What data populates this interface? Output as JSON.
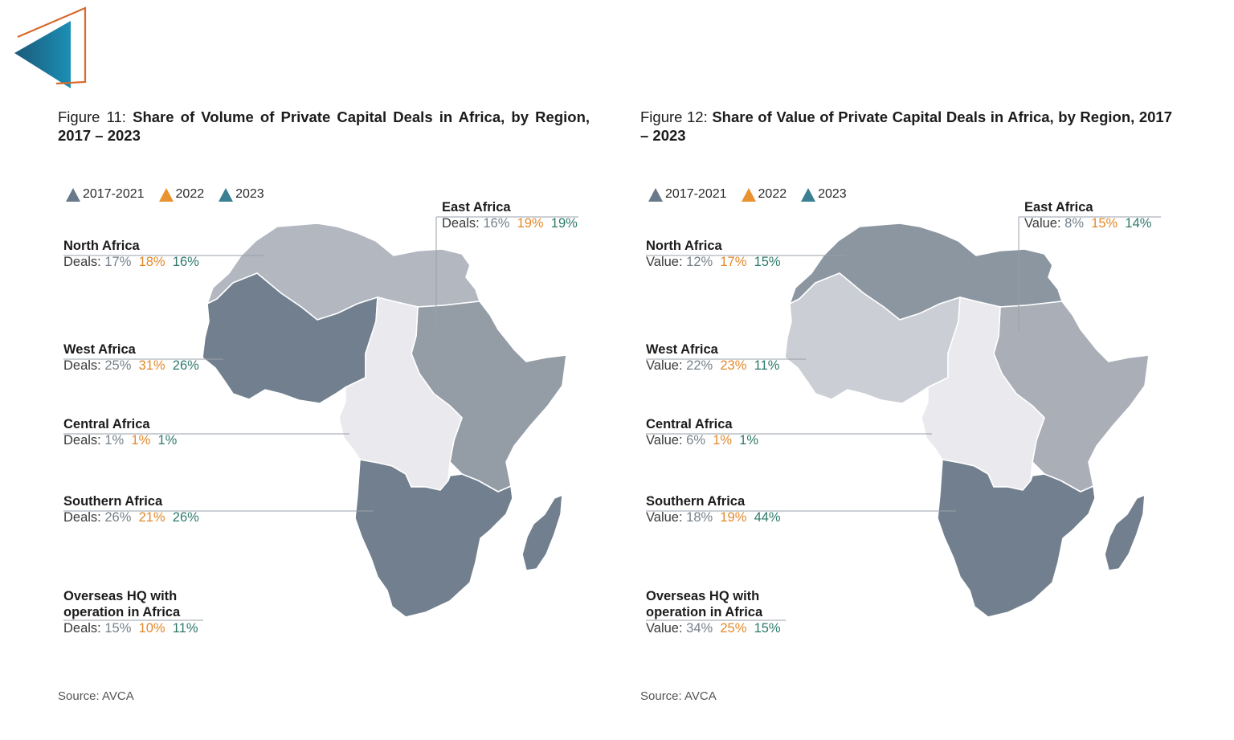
{
  "logo": {
    "name": "brand-logo"
  },
  "colors": {
    "s2017": "#68798a",
    "s2022": "#e8932f",
    "s2023": "#3b7f93",
    "label_gray": "#76808a",
    "label_orange": "#e3892b",
    "label_teal": "#2d7a6a"
  },
  "chart_data": [
    {
      "type": "choropleth-map",
      "title_prefix": "Figure 11: ",
      "title_bold": "Share of Volume of Private Capital Deals in Africa, by Region, 2017 – 2023",
      "legend": [
        "2017-2021",
        "2022",
        "2023"
      ],
      "metric_label": "Deals:",
      "regions": [
        {
          "name": "North Africa",
          "values": [
            "17%",
            "18%",
            "16%"
          ]
        },
        {
          "name": "West Africa",
          "values": [
            "25%",
            "31%",
            "26%"
          ]
        },
        {
          "name": "Central Africa",
          "values": [
            "1%",
            "1%",
            "1%"
          ]
        },
        {
          "name": "Southern Africa",
          "values": [
            "26%",
            "21%",
            "26%"
          ]
        },
        {
          "name": "Overseas HQ with operation in Africa",
          "name_line1": "Overseas HQ with",
          "name_line2": "operation in Africa",
          "values": [
            "15%",
            "10%",
            "11%"
          ]
        },
        {
          "name": "East Africa",
          "values": [
            "16%",
            "19%",
            "19%"
          ]
        }
      ],
      "source": "Source: AVCA"
    },
    {
      "type": "choropleth-map",
      "title_prefix": "Figure 12: ",
      "title_bold": "Share of Value of Private Capital Deals in Africa, by Region, 2017 – 2023",
      "legend": [
        "2017-2021",
        "2022",
        "2023"
      ],
      "metric_label": "Value:",
      "regions": [
        {
          "name": "North Africa",
          "values": [
            "12%",
            "17%",
            "15%"
          ]
        },
        {
          "name": "West Africa",
          "values": [
            "22%",
            "23%",
            "11%"
          ]
        },
        {
          "name": "Central Africa",
          "values": [
            "6%",
            "1%",
            "1%"
          ]
        },
        {
          "name": "Southern Africa",
          "values": [
            "18%",
            "19%",
            "44%"
          ]
        },
        {
          "name": "Overseas HQ with operation in Africa",
          "name_line1": "Overseas HQ with",
          "name_line2": "operation in Africa",
          "values": [
            "34%",
            "25%",
            "15%"
          ]
        },
        {
          "name": "East Africa",
          "values": [
            "8%",
            "15%",
            "14%"
          ]
        }
      ],
      "source": "Source: AVCA"
    }
  ]
}
